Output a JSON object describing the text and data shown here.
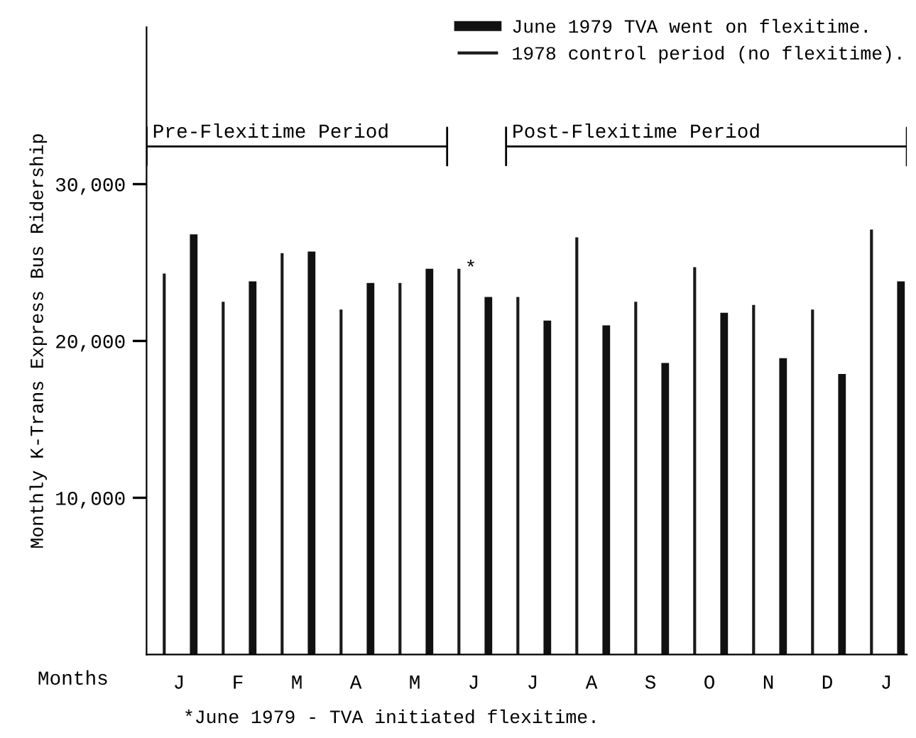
{
  "chart_data": {
    "type": "bar",
    "ylabel": "Monthly K-Trans Express Bus Ridership",
    "xlabel": "Months",
    "categories": [
      "J",
      "F",
      "M",
      "A",
      "M",
      "J",
      "J",
      "A",
      "S",
      "O",
      "N",
      "D",
      "J"
    ],
    "series": [
      {
        "name": "1978 control period (no flexitime).",
        "color": "#1a1a1a",
        "values": [
          24300,
          22500,
          25600,
          22000,
          23700,
          24600,
          22800,
          26600,
          22500,
          24700,
          22300,
          22000,
          27100
        ]
      },
      {
        "name": "June 1979 TVA went on flexitime.",
        "color": "#111111",
        "values": [
          26800,
          23800,
          25700,
          23700,
          24600,
          22800,
          21300,
          21000,
          18600,
          21800,
          18900,
          17900,
          23800
        ]
      }
    ],
    "ylim": [
      0,
      40000
    ],
    "yticks": [
      {
        "value": 10000,
        "label": "10,000"
      },
      {
        "value": 20000,
        "label": "20,000"
      },
      {
        "value": 30000,
        "label": "30,000"
      }
    ],
    "grid": false,
    "legend": "top right",
    "annotations": [
      "Pre-Flexitime Period",
      "Post-Flexitime Period",
      "*",
      "*June 1979 - TVA initiated flexitime."
    ]
  }
}
